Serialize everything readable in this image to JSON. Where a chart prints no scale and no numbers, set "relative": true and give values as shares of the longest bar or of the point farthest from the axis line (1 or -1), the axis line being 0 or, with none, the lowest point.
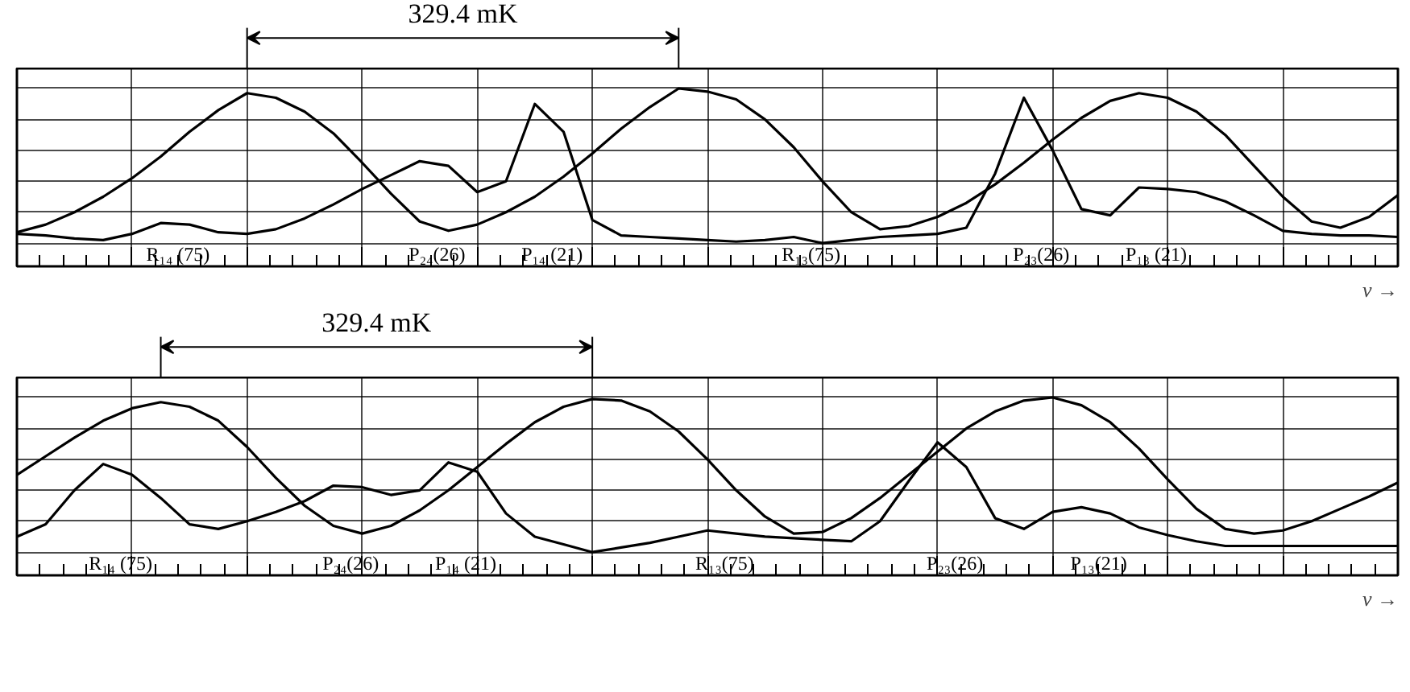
{
  "chart_data": [
    {
      "type": "line",
      "relative": true,
      "grid": true,
      "xlabel": "ν →",
      "categories": [
        null,
        null,
        null,
        null,
        null,
        null,
        null,
        null,
        null,
        null,
        null,
        null,
        null,
        null,
        null,
        null,
        null,
        null,
        null,
        null,
        null,
        null,
        null,
        null,
        null,
        null,
        null,
        null,
        null,
        null,
        null,
        null,
        null,
        null,
        null,
        null,
        null,
        null,
        null,
        null,
        null,
        null,
        null,
        null,
        null,
        null,
        null,
        null,
        null
      ],
      "series": [
        {
          "color": "#000000",
          "values": [
            0.07,
            0.12,
            0.2,
            0.3,
            0.42,
            0.56,
            0.72,
            0.86,
            0.97,
            0.94,
            0.85,
            0.71,
            0.52,
            0.32,
            0.14,
            0.08,
            0.12,
            0.2,
            0.3,
            0.43,
            0.58,
            0.74,
            0.88,
            1.0,
            0.98,
            0.93,
            0.8,
            0.62,
            0.4,
            0.2,
            0.09,
            0.11,
            0.17,
            0.26,
            0.38,
            0.52,
            0.67,
            0.81,
            0.92,
            0.97,
            0.94,
            0.85,
            0.7,
            0.5,
            0.3,
            0.14,
            0.1,
            0.17,
            0.31
          ]
        },
        {
          "color": "#000000",
          "values": [
            0.06,
            0.05,
            0.03,
            0.02,
            0.06,
            0.13,
            0.12,
            0.07,
            0.06,
            0.09,
            0.16,
            0.25,
            0.35,
            0.44,
            0.53,
            0.5,
            0.33,
            0.4,
            0.9,
            0.72,
            0.15,
            0.05,
            0.04,
            0.03,
            0.02,
            0.01,
            0.02,
            0.04,
            0.0,
            0.02,
            0.04,
            0.05,
            0.06,
            0.1,
            0.45,
            0.94,
            0.6,
            0.22,
            0.18,
            0.36,
            0.35,
            0.33,
            0.27,
            0.18,
            0.08,
            0.06,
            0.05,
            0.05,
            0.04
          ]
        }
      ],
      "annotations": [
        "329.4 mK",
        "R₁₄ (75)",
        "P₂₄(26)",
        "P₁₄ (21)",
        "R₁₃(75)",
        "P₂₃(26)",
        "P₁₃ (21)"
      ]
    },
    {
      "type": "line",
      "relative": true,
      "grid": true,
      "xlabel": "ν →",
      "categories": [
        null,
        null,
        null,
        null,
        null,
        null,
        null,
        null,
        null,
        null,
        null,
        null,
        null,
        null,
        null,
        null,
        null,
        null,
        null,
        null,
        null,
        null,
        null,
        null,
        null,
        null,
        null,
        null,
        null,
        null,
        null,
        null,
        null,
        null,
        null,
        null,
        null,
        null,
        null,
        null,
        null,
        null,
        null,
        null,
        null,
        null,
        null,
        null,
        null
      ],
      "series": [
        {
          "color": "#000000",
          "values": [
            0.5,
            0.62,
            0.74,
            0.85,
            0.93,
            0.97,
            0.94,
            0.85,
            0.68,
            0.48,
            0.3,
            0.17,
            0.12,
            0.17,
            0.27,
            0.4,
            0.55,
            0.7,
            0.84,
            0.94,
            0.99,
            0.98,
            0.91,
            0.78,
            0.6,
            0.4,
            0.23,
            0.12,
            0.13,
            0.22,
            0.35,
            0.5,
            0.65,
            0.8,
            0.91,
            0.98,
            1.0,
            0.95,
            0.84,
            0.67,
            0.47,
            0.28,
            0.15,
            0.12,
            0.14,
            0.2,
            0.28,
            0.36,
            0.45
          ]
        },
        {
          "color": "#000000",
          "values": [
            0.1,
            0.18,
            0.4,
            0.57,
            0.5,
            0.35,
            0.18,
            0.15,
            0.2,
            0.26,
            0.33,
            0.43,
            0.42,
            0.37,
            0.4,
            0.58,
            0.52,
            0.25,
            0.1,
            0.05,
            0.0,
            0.03,
            0.06,
            0.1,
            0.14,
            0.12,
            0.1,
            0.09,
            0.08,
            0.07,
            0.2,
            0.46,
            0.71,
            0.55,
            0.22,
            0.15,
            0.26,
            0.29,
            0.25,
            0.16,
            0.11,
            0.07,
            0.04,
            0.04,
            0.04,
            0.04,
            0.04,
            0.04,
            0.04
          ]
        }
      ],
      "annotations": [
        "329.4 mK",
        "R₁₄ (75)",
        "P₂₄(26)",
        "P₁₄ (21)",
        "R₁₃(75)",
        "P₂₃(26)",
        "P₁₃(21)"
      ]
    }
  ]
}
